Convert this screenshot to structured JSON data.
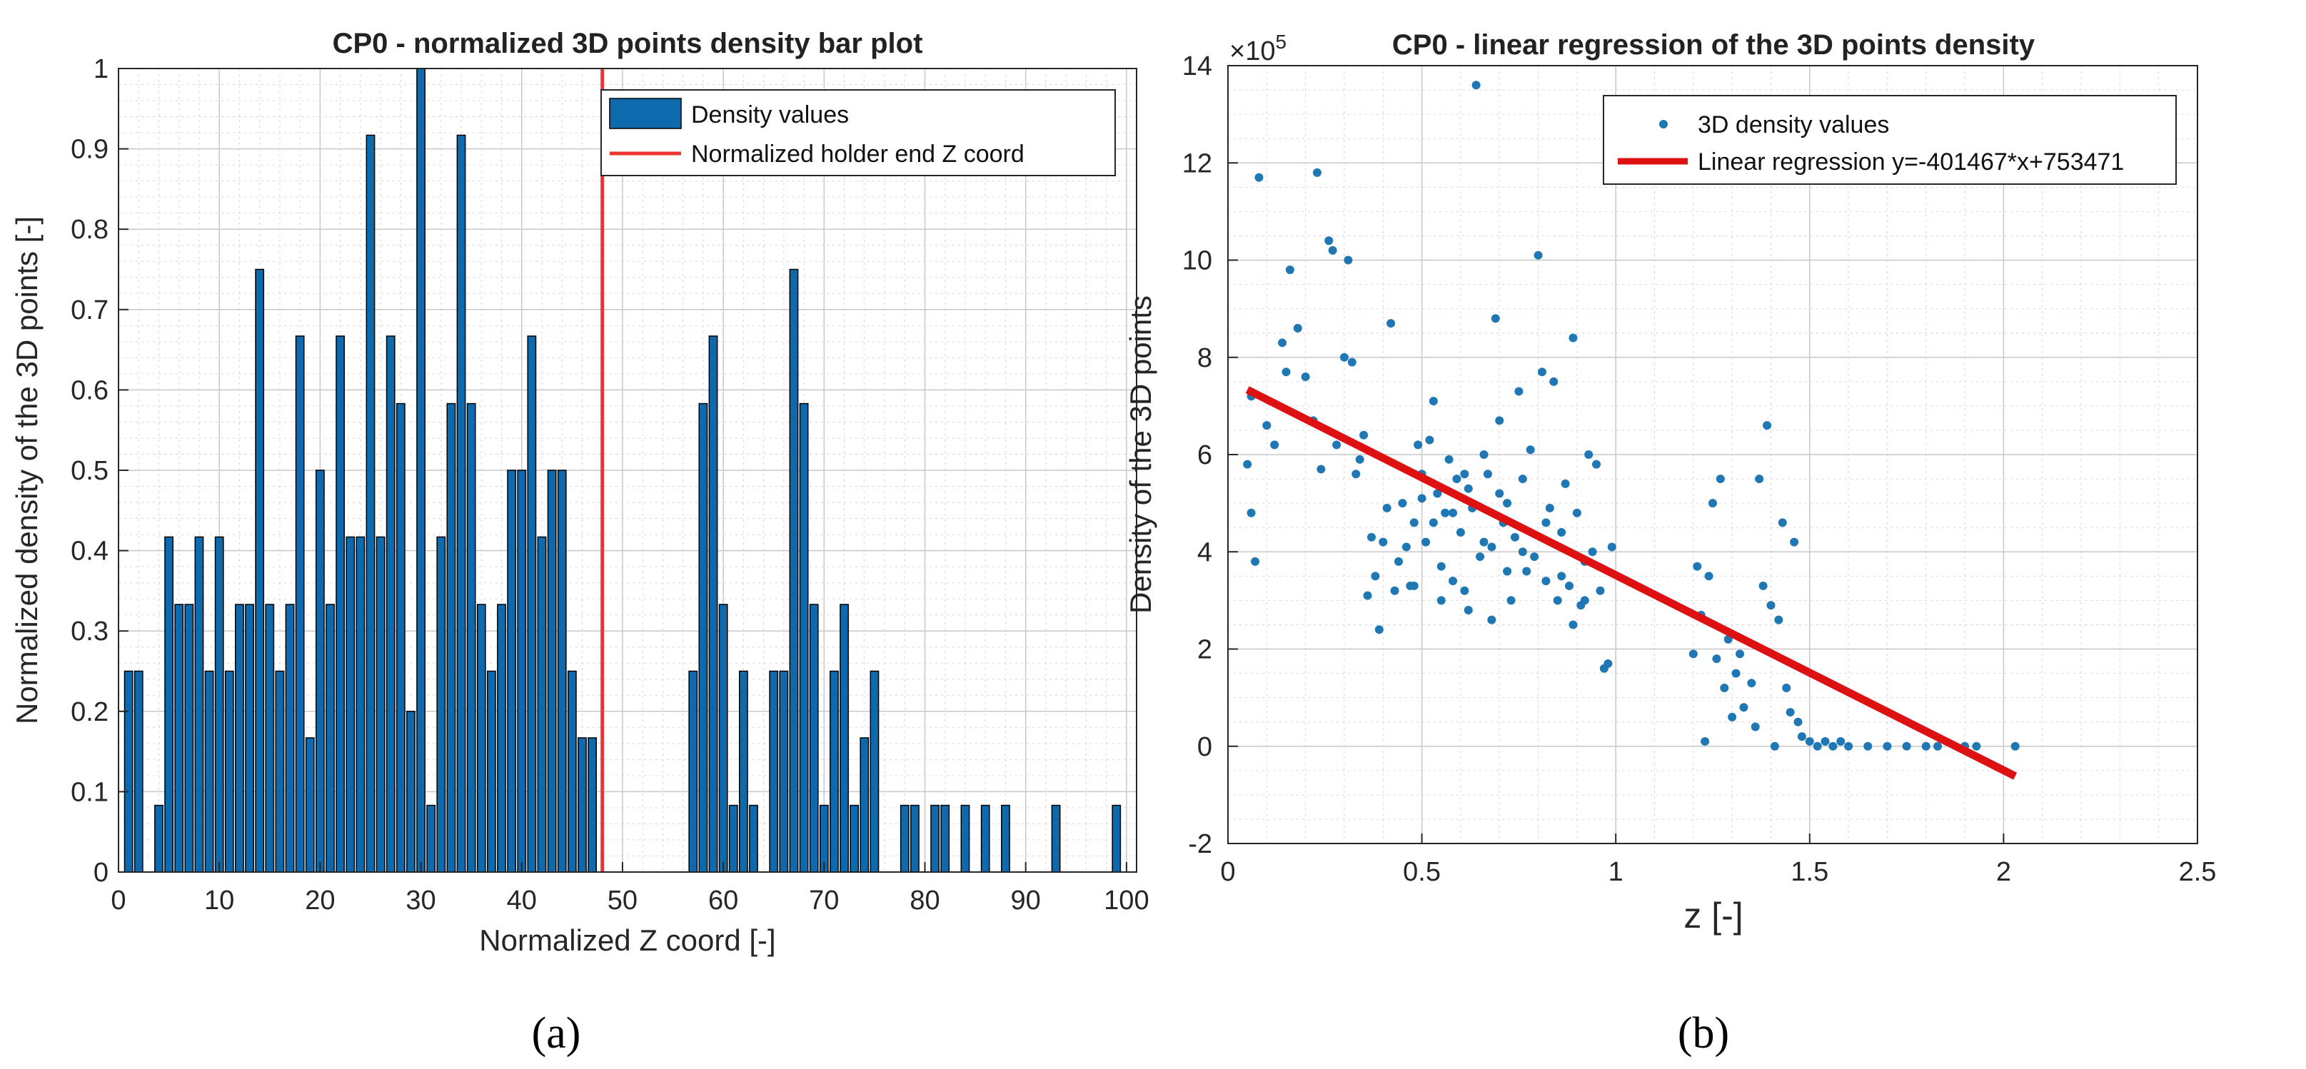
{
  "chart_data": [
    {
      "type": "bar",
      "title": "CP0 - normalized 3D points density bar plot",
      "xlabel": "Normalized Z coord [-]",
      "ylabel": "Normalized density of the 3D points [-]",
      "xlim": [
        0,
        101
      ],
      "ylim": [
        0,
        1
      ],
      "xticks": [
        "0",
        "10",
        "20",
        "30",
        "40",
        "50",
        "60",
        "70",
        "80",
        "90",
        "100"
      ],
      "yticks": [
        "0",
        "0.1",
        "0.2",
        "0.3",
        "0.4",
        "0.5",
        "0.6",
        "0.7",
        "0.8",
        "0.9",
        "1"
      ],
      "grid": true,
      "legend": {
        "position": "top-right",
        "bar_label": "Density values",
        "line_label": "Normalized holder end Z coord"
      },
      "caption": "(a)",
      "x": [
        1,
        2,
        3,
        4,
        5,
        6,
        7,
        8,
        9,
        10,
        11,
        12,
        13,
        14,
        15,
        16,
        17,
        18,
        19,
        20,
        21,
        22,
        23,
        24,
        25,
        26,
        27,
        28,
        29,
        30,
        31,
        32,
        33,
        34,
        35,
        36,
        37,
        38,
        39,
        40,
        41,
        42,
        43,
        44,
        45,
        46,
        47,
        48,
        49,
        50,
        51,
        52,
        53,
        54,
        55,
        56,
        57,
        58,
        59,
        60,
        61,
        62,
        63,
        64,
        65,
        66,
        67,
        68,
        69,
        70,
        71,
        72,
        73,
        74,
        75,
        76,
        77,
        78,
        79,
        80,
        81,
        82,
        83,
        84,
        85,
        86,
        87,
        88,
        89,
        90,
        91,
        92,
        93,
        94,
        95,
        96,
        97,
        98,
        99,
        100
      ],
      "values": [
        0.25,
        0.25,
        0,
        0.083,
        0.417,
        0.333,
        0.333,
        0.417,
        0.25,
        0.417,
        0.25,
        0.333,
        0.333,
        0.75,
        0.333,
        0.25,
        0.333,
        0.667,
        0.167,
        0.5,
        0.333,
        0.667,
        0.417,
        0.417,
        0.917,
        0.417,
        0.667,
        0.583,
        0.2,
        1.0,
        0.083,
        0.417,
        0.583,
        0.917,
        0.583,
        0.333,
        0.25,
        0.333,
        0.5,
        0.5,
        0.667,
        0.417,
        0.5,
        0.5,
        0.25,
        0.167,
        0.167,
        0,
        0,
        0,
        0,
        0,
        0,
        0,
        0,
        0,
        0.25,
        0.583,
        0.667,
        0.333,
        0.083,
        0.25,
        0.083,
        0,
        0.25,
        0.25,
        0.75,
        0.583,
        0.333,
        0.083,
        0.25,
        0.333,
        0.083,
        0.167,
        0.25,
        0,
        0,
        0.083,
        0.083,
        0,
        0.083,
        0.083,
        0,
        0.083,
        0,
        0.083,
        0,
        0.083,
        0,
        0,
        0,
        0,
        0.083,
        0,
        0,
        0,
        0,
        0,
        0.083,
        0
      ],
      "bar_color": "#0e6aad",
      "holder_end_z": 48,
      "line_color": "#ee3333"
    },
    {
      "type": "scatter",
      "title": "CP0 - linear regression of the 3D points density",
      "xlabel": "z [-]",
      "ylabel": "Density of the 3D points",
      "exponent_label": "×10",
      "exponent_power": "5",
      "xlim": [
        0,
        2.5
      ],
      "ylim": [
        -2,
        14
      ],
      "y_scale": 100000,
      "xticks": [
        "0",
        "0.5",
        "1",
        "1.5",
        "2",
        "2.5"
      ],
      "yticks": [
        "-2",
        "0",
        "2",
        "4",
        "6",
        "8",
        "10",
        "12",
        "14"
      ],
      "grid": true,
      "legend": {
        "position": "top-right",
        "scatter_label": "3D density values",
        "line_label": "Linear regression y=-401467*x+753471"
      },
      "caption": "(b)",
      "regression": {
        "slope": -401467,
        "intercept": 753471,
        "x_start": 0.05,
        "x_end": 2.03
      },
      "point_color": "#1f77b4",
      "line_color": "#dd1111",
      "points": [
        [
          0.05,
          5.8
        ],
        [
          0.06,
          7.2
        ],
        [
          0.08,
          11.7
        ],
        [
          0.07,
          3.8
        ],
        [
          0.06,
          4.8
        ],
        [
          0.1,
          6.6
        ],
        [
          0.12,
          6.2
        ],
        [
          0.14,
          8.3
        ],
        [
          0.15,
          7.7
        ],
        [
          0.16,
          9.8
        ],
        [
          0.18,
          8.6
        ],
        [
          0.2,
          7.6
        ],
        [
          0.22,
          6.7
        ],
        [
          0.23,
          11.8
        ],
        [
          0.24,
          5.7
        ],
        [
          0.26,
          10.4
        ],
        [
          0.27,
          10.2
        ],
        [
          0.28,
          6.2
        ],
        [
          0.3,
          8.0
        ],
        [
          0.31,
          10.0
        ],
        [
          0.32,
          7.9
        ],
        [
          0.33,
          5.6
        ],
        [
          0.34,
          5.9
        ],
        [
          0.35,
          6.4
        ],
        [
          0.37,
          4.3
        ],
        [
          0.38,
          3.5
        ],
        [
          0.39,
          2.4
        ],
        [
          0.41,
          4.9
        ],
        [
          0.42,
          8.7
        ],
        [
          0.43,
          3.2
        ],
        [
          0.45,
          5.0
        ],
        [
          0.46,
          4.1
        ],
        [
          0.47,
          3.3
        ],
        [
          0.48,
          4.6
        ],
        [
          0.49,
          6.2
        ],
        [
          0.5,
          5.1
        ],
        [
          0.51,
          4.2
        ],
        [
          0.52,
          6.3
        ],
        [
          0.53,
          7.1
        ],
        [
          0.54,
          5.2
        ],
        [
          0.55,
          3.7
        ],
        [
          0.56,
          4.8
        ],
        [
          0.57,
          5.9
        ],
        [
          0.58,
          3.4
        ],
        [
          0.59,
          5.5
        ],
        [
          0.6,
          4.4
        ],
        [
          0.61,
          5.6
        ],
        [
          0.62,
          2.8
        ],
        [
          0.63,
          4.9
        ],
        [
          0.64,
          13.6
        ],
        [
          0.65,
          3.9
        ],
        [
          0.66,
          6.0
        ],
        [
          0.67,
          5.6
        ],
        [
          0.68,
          4.1
        ],
        [
          0.69,
          8.8
        ],
        [
          0.7,
          6.7
        ],
        [
          0.71,
          4.6
        ],
        [
          0.72,
          5.0
        ],
        [
          0.73,
          3.0
        ],
        [
          0.74,
          4.3
        ],
        [
          0.75,
          7.3
        ],
        [
          0.76,
          5.5
        ],
        [
          0.77,
          3.6
        ],
        [
          0.78,
          6.1
        ],
        [
          0.8,
          10.1
        ],
        [
          0.81,
          7.7
        ],
        [
          0.82,
          3.4
        ],
        [
          0.83,
          4.9
        ],
        [
          0.84,
          7.5
        ],
        [
          0.85,
          3.0
        ],
        [
          0.86,
          4.4
        ],
        [
          0.87,
          5.4
        ],
        [
          0.88,
          3.3
        ],
        [
          0.89,
          8.4
        ],
        [
          0.9,
          4.8
        ],
        [
          0.91,
          2.9
        ],
        [
          0.92,
          3.8
        ],
        [
          0.93,
          6.0
        ],
        [
          0.94,
          4.0
        ],
        [
          0.95,
          5.8
        ],
        [
          0.96,
          3.2
        ],
        [
          0.97,
          1.6
        ],
        [
          0.98,
          1.7
        ],
        [
          0.99,
          4.1
        ],
        [
          0.4,
          4.2
        ],
        [
          0.36,
          3.1
        ],
        [
          0.44,
          3.8
        ],
        [
          0.53,
          4.6
        ],
        [
          0.58,
          4.8
        ],
        [
          0.62,
          5.3
        ],
        [
          0.66,
          4.2
        ],
        [
          0.7,
          5.2
        ],
        [
          0.72,
          3.6
        ],
        [
          0.76,
          4.0
        ],
        [
          0.79,
          3.9
        ],
        [
          0.82,
          4.6
        ],
        [
          0.86,
          3.5
        ],
        [
          0.89,
          2.5
        ],
        [
          0.92,
          3.0
        ],
        [
          0.61,
          3.2
        ],
        [
          0.68,
          2.6
        ],
        [
          0.55,
          3.0
        ],
        [
          0.48,
          3.3
        ],
        [
          0.5,
          5.6
        ],
        [
          1.2,
          1.9
        ],
        [
          1.21,
          3.7
        ],
        [
          1.22,
          2.7
        ],
        [
          1.23,
          0.1
        ],
        [
          1.24,
          3.5
        ],
        [
          1.25,
          5.0
        ],
        [
          1.26,
          1.8
        ],
        [
          1.27,
          5.5
        ],
        [
          1.28,
          1.2
        ],
        [
          1.29,
          2.2
        ],
        [
          1.3,
          0.6
        ],
        [
          1.31,
          1.5
        ],
        [
          1.32,
          1.9
        ],
        [
          1.33,
          0.8
        ],
        [
          1.35,
          1.3
        ],
        [
          1.36,
          0.4
        ],
        [
          1.37,
          5.5
        ],
        [
          1.38,
          3.3
        ],
        [
          1.39,
          6.6
        ],
        [
          1.4,
          2.9
        ],
        [
          1.41,
          0.0
        ],
        [
          1.42,
          2.6
        ],
        [
          1.43,
          4.6
        ],
        [
          1.44,
          1.2
        ],
        [
          1.45,
          0.7
        ],
        [
          1.46,
          4.2
        ],
        [
          1.47,
          0.5
        ],
        [
          1.48,
          0.2
        ],
        [
          1.5,
          0.1
        ],
        [
          1.52,
          0.0
        ],
        [
          1.54,
          0.1
        ],
        [
          1.56,
          0.0
        ],
        [
          1.58,
          0.1
        ],
        [
          1.6,
          0.0
        ],
        [
          1.65,
          0.0
        ],
        [
          1.7,
          0.0
        ],
        [
          1.75,
          0.0
        ],
        [
          1.8,
          0.0
        ],
        [
          1.83,
          0.0
        ],
        [
          1.9,
          0.0
        ],
        [
          1.93,
          0.0
        ],
        [
          2.03,
          0.0
        ]
      ]
    }
  ]
}
